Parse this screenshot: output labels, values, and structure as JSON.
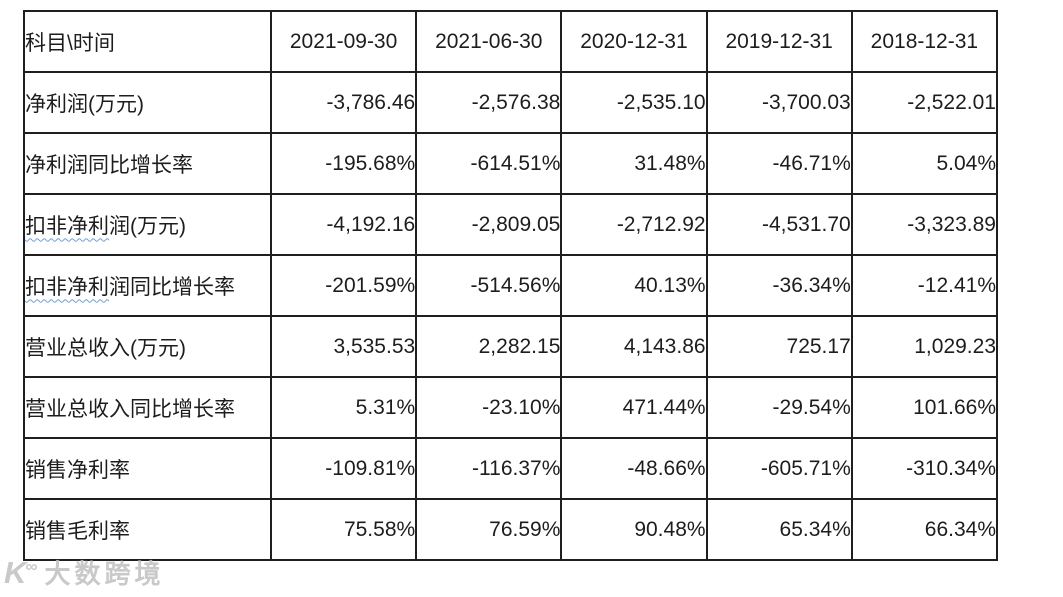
{
  "chart_data": {
    "type": "table",
    "corner_header": "科目\\时间",
    "date_headers": [
      "2021-09-30",
      "2021-06-30",
      "2020-12-31",
      "2019-12-31",
      "2018-12-31"
    ],
    "rows": [
      {
        "label_marked": "",
        "label_rest": "净利润(万元)",
        "values": [
          "-3,786.46",
          "-2,576.38",
          "-2,535.10",
          "-3,700.03",
          "-2,522.01"
        ]
      },
      {
        "label_marked": "",
        "label_rest": "净利润同比增长率",
        "values": [
          "-195.68%",
          "-614.51%",
          "31.48%",
          "-46.71%",
          "5.04%"
        ]
      },
      {
        "label_marked": "扣非净利",
        "label_rest": "润(万元)",
        "values": [
          "-4,192.16",
          "-2,809.05",
          "-2,712.92",
          "-4,531.70",
          "-3,323.89"
        ]
      },
      {
        "label_marked": "扣非净利",
        "label_rest": "润同比增长率",
        "values": [
          "-201.59%",
          "-514.56%",
          "40.13%",
          "-36.34%",
          "-12.41%"
        ]
      },
      {
        "label_marked": "",
        "label_rest": "营业总收入(万元)",
        "values": [
          "3,535.53",
          "2,282.15",
          "4,143.86",
          "725.17",
          "1,029.23"
        ]
      },
      {
        "label_marked": "",
        "label_rest": "营业总收入同比增长率",
        "values": [
          "5.31%",
          "-23.10%",
          "471.44%",
          "-29.54%",
          "101.66%"
        ]
      },
      {
        "label_marked": "",
        "label_rest": "销售净利率",
        "values": [
          "-109.81%",
          "-116.37%",
          "-48.66%",
          "-605.71%",
          "-310.34%"
        ]
      },
      {
        "label_marked": "",
        "label_rest": "销售毛利率",
        "values": [
          "75.58%",
          "76.59%",
          "90.48%",
          "65.34%",
          "66.34%"
        ]
      }
    ]
  },
  "watermark": {
    "logo_main": "K",
    "logo_super": "∞",
    "text": "大数跨境"
  },
  "colors": {
    "border": "#1f1f1f",
    "text": "#1d1d1d",
    "squiggle": "#6ea0d4",
    "watermark": "#c9c9c9"
  }
}
